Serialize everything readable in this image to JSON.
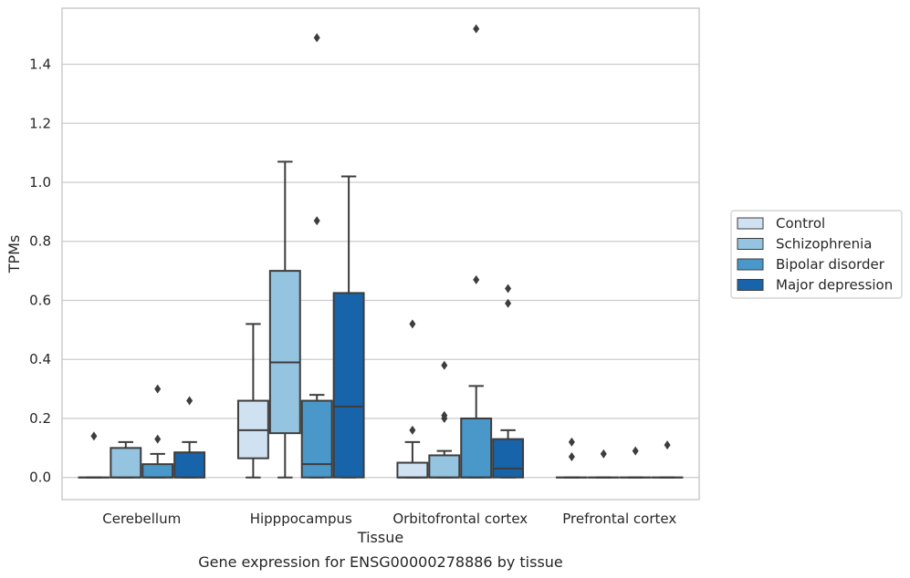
{
  "chart_data": {
    "type": "box",
    "xlabel": "Tissue",
    "ylabel": "TPMs",
    "caption": "Gene expression for ENSG00000278886 by tissue",
    "ylim": [
      -0.075,
      1.59
    ],
    "yticks": [
      "0.0",
      "0.2",
      "0.4",
      "0.6",
      "0.8",
      "1.0",
      "1.2",
      "1.4"
    ],
    "grid": "horizontal",
    "legend_position": "right",
    "categories": [
      "Cerebellum",
      "Hipppocampus",
      "Orbitofrontal cortex",
      "Prefrontal cortex"
    ],
    "series": [
      {
        "name": "Control",
        "color": "#d0e1f2",
        "boxes": [
          {
            "min": 0.0,
            "q1": 0.0,
            "median": 0.0,
            "q3": 0.0,
            "max": 0.0,
            "outliers": [
              0.14
            ]
          },
          {
            "min": 0.0,
            "q1": 0.065,
            "median": 0.16,
            "q3": 0.26,
            "max": 0.52,
            "outliers": []
          },
          {
            "min": 0.0,
            "q1": 0.0,
            "median": 0.0,
            "q3": 0.05,
            "max": 0.12,
            "outliers": [
              0.16,
              0.52
            ]
          },
          {
            "min": 0.0,
            "q1": 0.0,
            "median": 0.0,
            "q3": 0.0,
            "max": 0.0,
            "outliers": [
              0.07,
              0.12
            ]
          }
        ]
      },
      {
        "name": "Schizophrenia",
        "color": "#94c4df",
        "boxes": [
          {
            "min": 0.0,
            "q1": 0.0,
            "median": 0.0,
            "q3": 0.1,
            "max": 0.12,
            "outliers": []
          },
          {
            "min": 0.0,
            "q1": 0.15,
            "median": 0.39,
            "q3": 0.7,
            "max": 1.07,
            "outliers": []
          },
          {
            "min": 0.0,
            "q1": 0.0,
            "median": 0.0,
            "q3": 0.075,
            "max": 0.09,
            "outliers": [
              0.2,
              0.21,
              0.38
            ]
          },
          {
            "min": 0.0,
            "q1": 0.0,
            "median": 0.0,
            "q3": 0.0,
            "max": 0.0,
            "outliers": [
              0.08
            ]
          }
        ]
      },
      {
        "name": "Bipolar disorder",
        "color": "#4a98c9",
        "boxes": [
          {
            "min": 0.0,
            "q1": 0.0,
            "median": 0.0,
            "q3": 0.045,
            "max": 0.08,
            "outliers": [
              0.13,
              0.3
            ]
          },
          {
            "min": 0.0,
            "q1": 0.0,
            "median": 0.045,
            "q3": 0.26,
            "max": 0.28,
            "outliers": [
              0.87,
              1.49
            ]
          },
          {
            "min": 0.0,
            "q1": 0.0,
            "median": 0.0,
            "q3": 0.2,
            "max": 0.31,
            "outliers": [
              0.67,
              1.52
            ]
          },
          {
            "min": 0.0,
            "q1": 0.0,
            "median": 0.0,
            "q3": 0.0,
            "max": 0.0,
            "outliers": [
              0.09
            ]
          }
        ]
      },
      {
        "name": "Major depression",
        "color": "#1764ab",
        "boxes": [
          {
            "min": 0.0,
            "q1": 0.0,
            "median": 0.0,
            "q3": 0.085,
            "max": 0.12,
            "outliers": [
              0.26
            ]
          },
          {
            "min": 0.0,
            "q1": 0.0,
            "median": 0.24,
            "q3": 0.625,
            "max": 1.02,
            "outliers": []
          },
          {
            "min": 0.0,
            "q1": 0.0,
            "median": 0.03,
            "q3": 0.13,
            "max": 0.16,
            "outliers": [
              0.59,
              0.64
            ]
          },
          {
            "min": 0.0,
            "q1": 0.0,
            "median": 0.0,
            "q3": 0.0,
            "max": 0.0,
            "outliers": [
              0.11
            ]
          }
        ]
      }
    ]
  }
}
